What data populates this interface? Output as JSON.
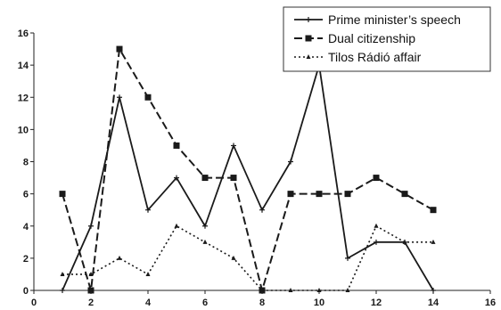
{
  "chart_data": {
    "type": "line",
    "title": "",
    "xlabel": "",
    "ylabel": "",
    "xlim": [
      0,
      16
    ],
    "ylim": [
      0,
      16
    ],
    "x_ticks": [
      0,
      2,
      4,
      6,
      8,
      10,
      12,
      14,
      16
    ],
    "y_ticks": [
      0,
      2,
      4,
      6,
      8,
      10,
      12,
      14,
      16
    ],
    "grid": false,
    "legend_position": "top-right",
    "x": [
      1,
      2,
      3,
      4,
      5,
      6,
      7,
      8,
      9,
      10,
      11,
      12,
      13,
      14
    ],
    "series": [
      {
        "name": "Prime minister’s speech",
        "line_style": "solid",
        "marker": "plus",
        "color": "#1a1a1a",
        "values": [
          0,
          4,
          12,
          5,
          7,
          4,
          9,
          5,
          8,
          14,
          2,
          3,
          3,
          0
        ]
      },
      {
        "name": "Dual citizenship",
        "line_style": "dashed",
        "marker": "square",
        "color": "#1a1a1a",
        "values": [
          6,
          0,
          15,
          12,
          9,
          7,
          7,
          0,
          6,
          6,
          6,
          7,
          6,
          5
        ]
      },
      {
        "name": "Tilos Rádió affair",
        "line_style": "dotted",
        "marker": "triangle",
        "color": "#1a1a1a",
        "values": [
          1,
          1,
          2,
          1,
          4,
          3,
          2,
          0,
          0,
          0,
          0,
          4,
          3,
          3
        ]
      }
    ]
  }
}
